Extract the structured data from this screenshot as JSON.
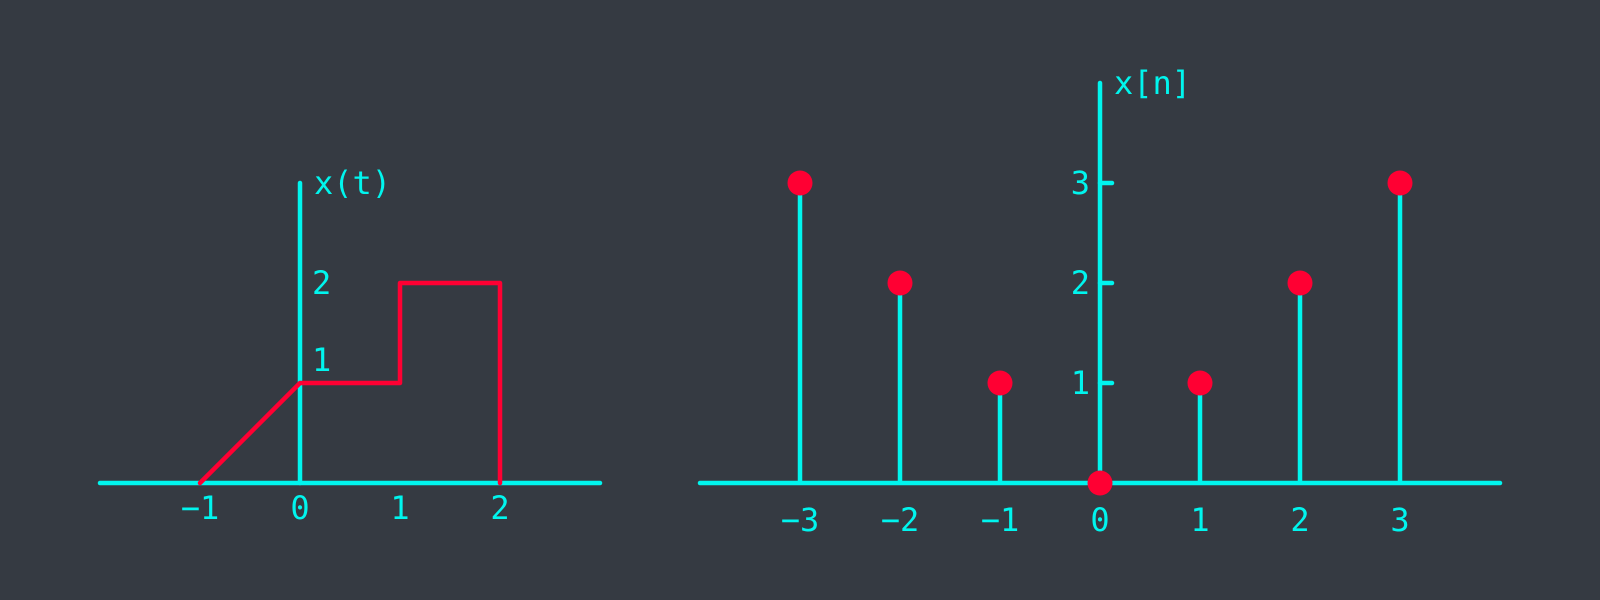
{
  "colors": {
    "background": "#353a42",
    "axis": "#00f5ee",
    "signal": "#ff0033"
  },
  "chart_data": [
    {
      "type": "line",
      "ylabel": "x(t)",
      "xlabel": "",
      "x": [
        -1,
        0,
        1,
        1,
        2,
        2
      ],
      "y": [
        0,
        1,
        1,
        2,
        2,
        0
      ],
      "x_ticks": [
        {
          "value": -1,
          "label": "−1"
        },
        {
          "value": 0,
          "label": "0"
        },
        {
          "value": 1,
          "label": "1"
        },
        {
          "value": 2,
          "label": "2"
        }
      ],
      "y_ticks": [
        {
          "value": 1,
          "label": "1"
        },
        {
          "value": 2,
          "label": "2"
        }
      ],
      "xlim": [
        -2,
        3
      ],
      "ylim": [
        0,
        3
      ],
      "grid": false
    },
    {
      "type": "scatter",
      "style": "stem",
      "ylabel": "x[n]",
      "xlabel": "",
      "x": [
        -3,
        -2,
        -1,
        0,
        1,
        2,
        3
      ],
      "y": [
        3,
        2,
        1,
        0,
        1,
        2,
        3
      ],
      "x_ticks": [
        {
          "value": -3,
          "label": "−3"
        },
        {
          "value": -2,
          "label": "−2"
        },
        {
          "value": -1,
          "label": "−1"
        },
        {
          "value": 0,
          "label": "0"
        },
        {
          "value": 1,
          "label": "1"
        },
        {
          "value": 2,
          "label": "2"
        },
        {
          "value": 3,
          "label": "3"
        }
      ],
      "y_ticks": [
        {
          "value": 1,
          "label": "1"
        },
        {
          "value": 2,
          "label": "2"
        },
        {
          "value": 3,
          "label": "3"
        }
      ],
      "xlim": [
        -4,
        4
      ],
      "ylim": [
        0,
        4
      ],
      "grid": false
    }
  ]
}
